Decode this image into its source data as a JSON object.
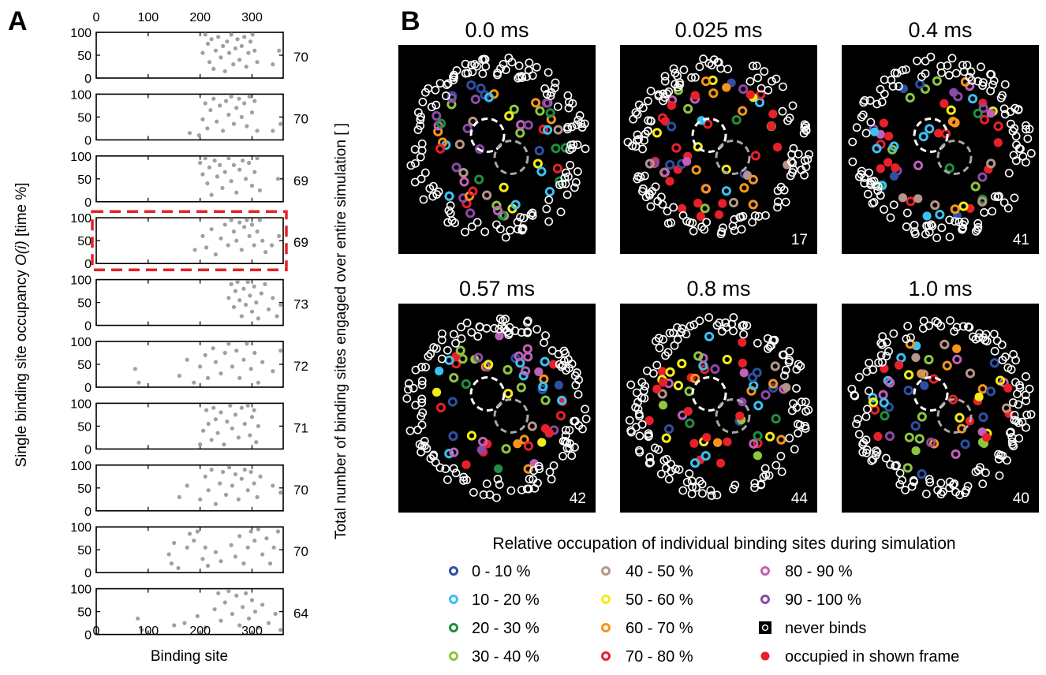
{
  "panel_a": {
    "letter": "A",
    "xlabel": "Binding site",
    "ylabel_prefix": "Single binding site occupancy ",
    "ylabel_italic": "O(i)",
    "ylabel_suffix": " [time %]",
    "right_label": "Total number of binding sites engaged over entire simulation [ ]",
    "x_ticks": [
      "0",
      "100",
      "200",
      "300"
    ],
    "y_ticks": [
      "0",
      "50",
      "100"
    ],
    "counts": [
      "70",
      "70",
      "69",
      "69",
      "73",
      "72",
      "71",
      "70",
      "70",
      "64"
    ]
  },
  "panel_b": {
    "letter": "B",
    "times": [
      "0.0 ms",
      "0.025 ms",
      "0.4 ms",
      "0.57 ms",
      "0.8 ms",
      "1.0 ms"
    ],
    "frame_counts": [
      "",
      "17",
      "41",
      "42",
      "44",
      "40"
    ]
  },
  "legend": {
    "title": "Relative occupation of individual binding sites during simulation",
    "items": [
      {
        "label": "0 - 10 %",
        "color": "#2e4fa3",
        "kind": "ring"
      },
      {
        "label": "10 - 20 %",
        "color": "#3cc0f0",
        "kind": "ring"
      },
      {
        "label": "20 - 30 %",
        "color": "#1f8f3f",
        "kind": "ring"
      },
      {
        "label": "30 - 40 %",
        "color": "#8dc63f",
        "kind": "ring"
      },
      {
        "label": "40 - 50 %",
        "color": "#b89488",
        "kind": "ring"
      },
      {
        "label": "50 - 60 %",
        "color": "#f2ec1a",
        "kind": "ring"
      },
      {
        "label": "60 - 70 %",
        "color": "#f7941d",
        "kind": "ring"
      },
      {
        "label": "70 - 80 %",
        "color": "#e8202a",
        "kind": "ring"
      },
      {
        "label": "80 - 90 %",
        "color": "#c060b8",
        "kind": "ring"
      },
      {
        "label": "90 - 100 %",
        "color": "#8a4aa8",
        "kind": "ring"
      },
      {
        "label": "never binds",
        "color": "#000000",
        "kind": "box"
      },
      {
        "label": "occupied in shown frame",
        "color": "#e8202a",
        "kind": "dot"
      }
    ]
  },
  "chart_data": [
    {
      "type": "scatter",
      "title": "",
      "xlabel": "Binding site",
      "ylabel": "Single binding site occupancy O(i) [time %]",
      "xlim": [
        0,
        360
      ],
      "ylim": [
        0,
        100
      ],
      "x_ticks": [
        0,
        100,
        200,
        300
      ],
      "y_ticks": [
        0,
        50,
        100
      ],
      "series_color": "#a0a0a0",
      "highlighted_subplot": 4,
      "subplots": [
        {
          "index": 1,
          "total_sites": 70,
          "points": [
            [
              205,
              55
            ],
            [
              210,
              95
            ],
            [
              215,
              75
            ],
            [
              218,
              35
            ],
            [
              222,
              85
            ],
            [
              226,
              20
            ],
            [
              230,
              60
            ],
            [
              235,
              90
            ],
            [
              240,
              45
            ],
            [
              244,
              70
            ],
            [
              248,
              15
            ],
            [
              252,
              80
            ],
            [
              256,
              55
            ],
            [
              260,
              95
            ],
            [
              264,
              30
            ],
            [
              268,
              65
            ],
            [
              272,
              85
            ],
            [
              276,
              40
            ],
            [
              280,
              70
            ],
            [
              285,
              90
            ],
            [
              289,
              25
            ],
            [
              293,
              55
            ],
            [
              297,
              80
            ],
            [
              301,
              95
            ],
            [
              305,
              60
            ],
            [
              310,
              35
            ],
            [
              340,
              30
            ],
            [
              352,
              60
            ]
          ]
        },
        {
          "index": 2,
          "total_sites": 70,
          "points": [
            [
              180,
              15
            ],
            [
              198,
              10
            ],
            [
              205,
              45
            ],
            [
              210,
              80
            ],
            [
              214,
              25
            ],
            [
              220,
              65
            ],
            [
              226,
              90
            ],
            [
              232,
              40
            ],
            [
              238,
              75
            ],
            [
              244,
              20
            ],
            [
              250,
              85
            ],
            [
              255,
              55
            ],
            [
              260,
              95
            ],
            [
              265,
              35
            ],
            [
              270,
              70
            ],
            [
              275,
              90
            ],
            [
              280,
              50
            ],
            [
              285,
              80
            ],
            [
              290,
              30
            ],
            [
              295,
              95
            ],
            [
              300,
              60
            ],
            [
              305,
              85
            ],
            [
              310,
              20
            ],
            [
              340,
              20
            ],
            [
              355,
              35
            ]
          ]
        },
        {
          "index": 3,
          "total_sites": 69,
          "points": [
            [
              200,
              85
            ],
            [
              205,
              60
            ],
            [
              210,
              95
            ],
            [
              214,
              40
            ],
            [
              218,
              75
            ],
            [
              222,
              15
            ],
            [
              228,
              90
            ],
            [
              233,
              55
            ],
            [
              238,
              80
            ],
            [
              243,
              30
            ],
            [
              248,
              65
            ],
            [
              255,
              95
            ],
            [
              260,
              45
            ],
            [
              265,
              80
            ],
            [
              270,
              20
            ],
            [
              276,
              70
            ],
            [
              282,
              90
            ],
            [
              288,
              50
            ],
            [
              294,
              85
            ],
            [
              300,
              35
            ],
            [
              305,
              65
            ],
            [
              310,
              95
            ],
            [
              315,
              25
            ],
            [
              350,
              50
            ]
          ]
        },
        {
          "index": 4,
          "total_sites": 69,
          "points": [
            [
              190,
              30
            ],
            [
              205,
              60
            ],
            [
              212,
              35
            ],
            [
              222,
              75
            ],
            [
              230,
              20
            ],
            [
              240,
              55
            ],
            [
              248,
              85
            ],
            [
              254,
              40
            ],
            [
              260,
              95
            ],
            [
              265,
              70
            ],
            [
              270,
              50
            ],
            [
              276,
              90
            ],
            [
              280,
              30
            ],
            [
              285,
              80
            ],
            [
              290,
              95
            ],
            [
              295,
              60
            ],
            [
              300,
              85
            ],
            [
              304,
              40
            ],
            [
              310,
              70
            ],
            [
              315,
              95
            ],
            [
              320,
              50
            ],
            [
              326,
              25
            ],
            [
              338,
              40
            ],
            [
              352,
              60
            ]
          ]
        },
        {
          "index": 5,
          "total_sites": 73,
          "points": [
            [
              255,
              60
            ],
            [
              260,
              90
            ],
            [
              265,
              40
            ],
            [
              268,
              75
            ],
            [
              272,
              95
            ],
            [
              276,
              55
            ],
            [
              280,
              20
            ],
            [
              284,
              80
            ],
            [
              288,
              45
            ],
            [
              292,
              95
            ],
            [
              296,
              65
            ],
            [
              300,
              30
            ],
            [
              304,
              85
            ],
            [
              308,
              50
            ],
            [
              312,
              15
            ],
            [
              318,
              70
            ],
            [
              325,
              90
            ],
            [
              332,
              35
            ],
            [
              340,
              60
            ],
            [
              348,
              20
            ],
            [
              355,
              45
            ]
          ]
        },
        {
          "index": 6,
          "total_sites": 72,
          "points": [
            [
              75,
              40
            ],
            [
              82,
              10
            ],
            [
              160,
              25
            ],
            [
              175,
              60
            ],
            [
              188,
              10
            ],
            [
              200,
              45
            ],
            [
              210,
              70
            ],
            [
              215,
              20
            ],
            [
              225,
              85
            ],
            [
              230,
              55
            ],
            [
              240,
              30
            ],
            [
              248,
              75
            ],
            [
              255,
              95
            ],
            [
              262,
              45
            ],
            [
              270,
              80
            ],
            [
              276,
              20
            ],
            [
              284,
              60
            ],
            [
              290,
              95
            ],
            [
              298,
              40
            ],
            [
              305,
              75
            ],
            [
              312,
              10
            ],
            [
              320,
              55
            ],
            [
              340,
              35
            ],
            [
              355,
              80
            ]
          ]
        },
        {
          "index": 7,
          "total_sites": 71,
          "points": [
            [
              200,
              10
            ],
            [
              206,
              40
            ],
            [
              212,
              85
            ],
            [
              216,
              55
            ],
            [
              222,
              20
            ],
            [
              226,
              90
            ],
            [
              230,
              65
            ],
            [
              234,
              35
            ],
            [
              240,
              80
            ],
            [
              246,
              10
            ],
            [
              252,
              60
            ],
            [
              258,
              95
            ],
            [
              262,
              45
            ],
            [
              268,
              75
            ],
            [
              274,
              25
            ],
            [
              280,
              90
            ],
            [
              286,
              55
            ],
            [
              292,
              95
            ],
            [
              296,
              30
            ],
            [
              300,
              70
            ],
            [
              304,
              85
            ],
            [
              308,
              15
            ],
            [
              312,
              50
            ]
          ]
        },
        {
          "index": 8,
          "total_sites": 70,
          "points": [
            [
              160,
              30
            ],
            [
              175,
              55
            ],
            [
              200,
              25
            ],
            [
              210,
              75
            ],
            [
              216,
              45
            ],
            [
              222,
              90
            ],
            [
              230,
              15
            ],
            [
              238,
              60
            ],
            [
              244,
              85
            ],
            [
              250,
              35
            ],
            [
              256,
              95
            ],
            [
              262,
              55
            ],
            [
              268,
              80
            ],
            [
              274,
              25
            ],
            [
              280,
              70
            ],
            [
              286,
              90
            ],
            [
              292,
              45
            ],
            [
              298,
              85
            ],
            [
              304,
              60
            ],
            [
              310,
              30
            ],
            [
              316,
              75
            ],
            [
              340,
              55
            ],
            [
              355,
              40
            ]
          ]
        },
        {
          "index": 9,
          "total_sites": 70,
          "points": [
            [
              140,
              40
            ],
            [
              145,
              20
            ],
            [
              150,
              65
            ],
            [
              158,
              10
            ],
            [
              175,
              55
            ],
            [
              180,
              85
            ],
            [
              188,
              70
            ],
            [
              195,
              90
            ],
            [
              205,
              30
            ],
            [
              210,
              55
            ],
            [
              215,
              15
            ],
            [
              230,
              45
            ],
            [
              240,
              25
            ],
            [
              260,
              60
            ],
            [
              268,
              35
            ],
            [
              276,
              80
            ],
            [
              284,
              20
            ],
            [
              292,
              55
            ],
            [
              298,
              90
            ],
            [
              305,
              70
            ],
            [
              312,
              95
            ],
            [
              320,
              40
            ],
            [
              328,
              75
            ],
            [
              335,
              20
            ],
            [
              342,
              55
            ],
            [
              350,
              90
            ]
          ]
        },
        {
          "index": 10,
          "total_sites": 64,
          "points": [
            [
              80,
              35
            ],
            [
              88,
              10
            ],
            [
              150,
              20
            ],
            [
              170,
              25
            ],
            [
              195,
              40
            ],
            [
              210,
              15
            ],
            [
              228,
              55
            ],
            [
              235,
              90
            ],
            [
              240,
              30
            ],
            [
              248,
              70
            ],
            [
              255,
              95
            ],
            [
              262,
              45
            ],
            [
              270,
              85
            ],
            [
              276,
              20
            ],
            [
              282,
              60
            ],
            [
              288,
              90
            ],
            [
              294,
              35
            ],
            [
              300,
              75
            ],
            [
              306,
              50
            ],
            [
              312,
              15
            ],
            [
              320,
              65
            ],
            [
              332,
              25
            ],
            [
              345,
              45
            ],
            [
              355,
              10
            ]
          ]
        }
      ]
    },
    {
      "type": "other",
      "description_fields": {
        "frames": [
          {
            "time": "0.0 ms",
            "count": ""
          },
          {
            "time": "0.025 ms",
            "count": "17"
          },
          {
            "time": "0.4 ms",
            "count": "41"
          },
          {
            "time": "0.57 ms",
            "count": "42"
          },
          {
            "time": "0.8 ms",
            "count": "44"
          },
          {
            "time": "1.0 ms",
            "count": "40"
          }
        ]
      }
    }
  ]
}
